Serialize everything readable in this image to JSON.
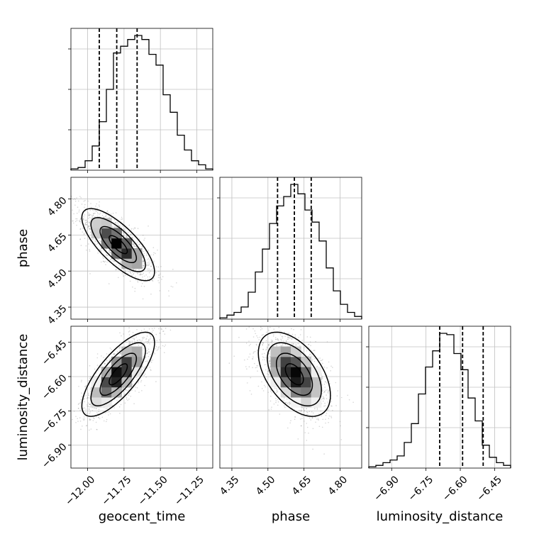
{
  "chart_data": {
    "type": "corner",
    "parameters": [
      "geocent_time",
      "phase",
      "luminosity_distance"
    ],
    "labels": {
      "geocent_time": "geocent_time",
      "phase": "phase",
      "luminosity_distance": "luminosity_distance"
    },
    "ranges": {
      "geocent_time": [
        -12.115,
        -11.14
      ],
      "phase": [
        4.3,
        4.89
      ],
      "luminosity_distance": [
        -7.0,
        -6.38
      ]
    },
    "ticks": {
      "geocent_time": [
        -12.0,
        -11.75,
        -11.5,
        -11.25
      ],
      "phase": [
        4.35,
        4.5,
        4.65,
        4.8
      ],
      "luminosity_distance": [
        -6.9,
        -6.75,
        -6.6,
        -6.45
      ]
    },
    "tick_labels": {
      "geocent_time": [
        "−12.00",
        "−11.75",
        "−11.50",
        "−11.25"
      ],
      "phase": [
        "4.35",
        "4.50",
        "4.65",
        "4.80"
      ],
      "luminosity_distance": [
        "−6.90",
        "−6.75",
        "−6.60",
        "−6.45"
      ]
    },
    "quantiles": {
      "geocent_time": [
        -11.92,
        -11.8,
        -11.66
      ],
      "phase": [
        4.54,
        4.61,
        4.68
      ],
      "luminosity_distance": [
        -6.69,
        -6.59,
        -6.5
      ]
    },
    "means": {
      "geocent_time": -11.79,
      "phase": 4.61,
      "luminosity_distance": -6.59
    },
    "sigmas": {
      "geocent_time": 0.125,
      "phase": 0.075,
      "luminosity_distance": 0.092
    },
    "correlations": [
      {
        "x": "geocent_time",
        "y": "phase",
        "rho": -0.75
      },
      {
        "x": "geocent_time",
        "y": "luminosity_distance",
        "rho": 0.75
      },
      {
        "x": "phase",
        "y": "luminosity_distance",
        "rho": -0.5
      }
    ],
    "histograms": {
      "geocent_time": [
        0.01,
        0.02,
        0.07,
        0.18,
        0.36,
        0.6,
        0.87,
        0.92,
        0.97,
        1.0,
        0.97,
        0.86,
        0.78,
        0.56,
        0.43,
        0.26,
        0.15,
        0.07,
        0.04,
        0.01
      ],
      "phase": [
        0.01,
        0.03,
        0.05,
        0.09,
        0.2,
        0.35,
        0.52,
        0.71,
        0.84,
        0.91,
        1.0,
        0.93,
        0.81,
        0.72,
        0.58,
        0.38,
        0.21,
        0.11,
        0.05,
        0.02
      ],
      "luminosity_distance": [
        0.01,
        0.02,
        0.04,
        0.06,
        0.09,
        0.19,
        0.33,
        0.55,
        0.75,
        0.87,
        1.0,
        0.99,
        0.85,
        0.73,
        0.52,
        0.35,
        0.17,
        0.08,
        0.04,
        0.02
      ]
    },
    "grid": true,
    "contour_levels": [
      0.118,
      0.393,
      0.675,
      0.865
    ]
  }
}
